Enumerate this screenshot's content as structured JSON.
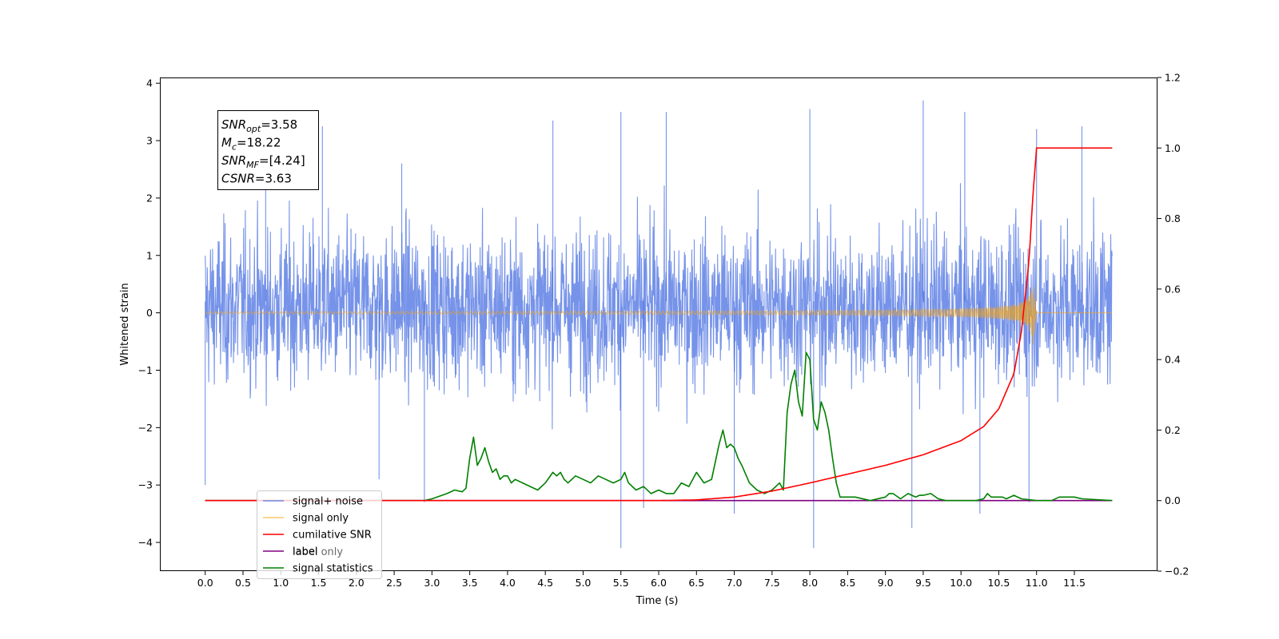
{
  "chart_data": {
    "type": "line",
    "xlabel": "Time (s)",
    "ylabel_left": "Whitened strain",
    "ylabel_right": "",
    "xlim": [
      -0.6,
      12.6
    ],
    "ylim_left": [
      -4.5,
      4.1
    ],
    "ylim_right": [
      -0.2,
      1.2
    ],
    "x_ticks": [
      "0.0",
      "0.5",
      "1.0",
      "1.5",
      "2.0",
      "2.5",
      "3.0",
      "3.5",
      "4.0",
      "4.5",
      "5.0",
      "5.5",
      "6.0",
      "6.5",
      "7.0",
      "7.5",
      "8.0",
      "8.5",
      "9.0",
      "9.5",
      "10.0",
      "10.5",
      "11.0",
      "11.5"
    ],
    "y_ticks_left": [
      "−4",
      "−3",
      "−2",
      "−1",
      "0",
      "1",
      "2",
      "3",
      "4"
    ],
    "y_ticks_right": [
      "−0.2",
      "0.0",
      "0.2",
      "0.4",
      "0.6",
      "0.8",
      "1.0",
      "1.2"
    ],
    "grid": false,
    "legend_position": "bottom-left",
    "stats_box": {
      "lines": [
        {
          "sym": "SNR",
          "sub": "opt",
          "val": "=3.58"
        },
        {
          "sym": "M",
          "sub": "c",
          "val": "=18.22"
        },
        {
          "sym": "SNR",
          "sub": "MF",
          "val": "=[4.24]"
        },
        {
          "sym": "CSNR",
          "sub": "",
          "val": "=3.63"
        }
      ]
    },
    "series": [
      {
        "name": "signal+ noise",
        "axis": "left",
        "color": "#4169e1",
        "description_range": [
          0.0,
          12.0
        ],
        "peak_values": [
          [
            0.8,
            2.55
          ],
          [
            1.55,
            3.25
          ],
          [
            2.6,
            2.6
          ],
          [
            4.6,
            3.35
          ],
          [
            5.5,
            3.5
          ],
          [
            6.1,
            3.5
          ],
          [
            8.0,
            3.55
          ],
          [
            9.5,
            3.7
          ],
          [
            10.05,
            3.5
          ],
          [
            11.0,
            3.2
          ],
          [
            11.6,
            3.25
          ]
        ],
        "trough_values": [
          [
            0.0,
            -3.0
          ],
          [
            2.3,
            -2.9
          ],
          [
            2.9,
            -3.3
          ],
          [
            5.5,
            -4.1
          ],
          [
            5.8,
            -3.4
          ],
          [
            7.0,
            -3.5
          ],
          [
            8.05,
            -4.1
          ],
          [
            9.35,
            -3.75
          ],
          [
            10.25,
            -3.5
          ],
          [
            10.9,
            -3.3
          ]
        ]
      },
      {
        "name": "signal only",
        "axis": "left",
        "color": "#ffa500",
        "chirp": {
          "start": 0.0,
          "end": 11.0,
          "merger": 10.95,
          "peak_amplitude": 0.62,
          "tail_end": 12.0
        }
      },
      {
        "name": "cumilative SNR",
        "axis": "right",
        "color": "#ff0000",
        "x": [
          0.0,
          6.0,
          6.5,
          7.0,
          7.5,
          8.0,
          8.5,
          9.0,
          9.5,
          10.0,
          10.3,
          10.5,
          10.7,
          10.8,
          10.9,
          10.95,
          11.0,
          12.0
        ],
        "y": [
          0.0,
          0.0,
          0.002,
          0.01,
          0.027,
          0.05,
          0.075,
          0.1,
          0.13,
          0.17,
          0.21,
          0.26,
          0.36,
          0.48,
          0.68,
          0.86,
          1.0,
          1.0
        ]
      },
      {
        "name": "label only",
        "axis": "right",
        "color": "#ffa500",
        "x": [],
        "y": []
      },
      {
        "name": "label",
        "axis": "right",
        "color": "#800080",
        "x": [
          0.0,
          12.0
        ],
        "y": [
          0.0,
          0.0
        ]
      },
      {
        "name": "signal statistics",
        "axis": "right",
        "color": "#008000",
        "x": [
          0.0,
          2.5,
          2.9,
          3.0,
          3.2,
          3.3,
          3.4,
          3.45,
          3.5,
          3.55,
          3.6,
          3.65,
          3.7,
          3.75,
          3.8,
          3.85,
          3.9,
          3.95,
          4.0,
          4.05,
          4.1,
          4.2,
          4.3,
          4.4,
          4.5,
          4.6,
          4.65,
          4.7,
          4.75,
          4.8,
          4.9,
          5.0,
          5.1,
          5.2,
          5.3,
          5.4,
          5.5,
          5.55,
          5.6,
          5.7,
          5.8,
          5.9,
          6.0,
          6.1,
          6.2,
          6.3,
          6.4,
          6.5,
          6.6,
          6.7,
          6.8,
          6.85,
          6.9,
          6.95,
          7.0,
          7.05,
          7.1,
          7.2,
          7.3,
          7.4,
          7.5,
          7.6,
          7.65,
          7.7,
          7.75,
          7.8,
          7.85,
          7.9,
          7.95,
          8.0,
          8.05,
          8.1,
          8.15,
          8.2,
          8.25,
          8.3,
          8.35,
          8.4,
          8.45,
          8.5,
          8.6,
          8.8,
          9.0,
          9.05,
          9.1,
          9.2,
          9.3,
          9.35,
          9.4,
          9.45,
          9.5,
          9.6,
          9.7,
          9.8,
          10.0,
          10.2,
          10.3,
          10.35,
          10.4,
          10.5,
          10.55,
          10.6,
          10.7,
          10.8,
          11.0,
          11.2,
          11.3,
          11.5,
          11.6,
          12.0
        ],
        "y": [
          0.0,
          0.0,
          0.0,
          0.005,
          0.02,
          0.03,
          0.025,
          0.035,
          0.12,
          0.18,
          0.1,
          0.12,
          0.15,
          0.11,
          0.08,
          0.09,
          0.06,
          0.07,
          0.07,
          0.05,
          0.06,
          0.05,
          0.04,
          0.03,
          0.05,
          0.08,
          0.07,
          0.08,
          0.06,
          0.05,
          0.07,
          0.06,
          0.05,
          0.07,
          0.06,
          0.05,
          0.06,
          0.08,
          0.05,
          0.03,
          0.04,
          0.02,
          0.03,
          0.02,
          0.02,
          0.05,
          0.04,
          0.08,
          0.05,
          0.06,
          0.16,
          0.2,
          0.15,
          0.16,
          0.15,
          0.12,
          0.1,
          0.05,
          0.03,
          0.02,
          0.03,
          0.05,
          0.03,
          0.25,
          0.33,
          0.37,
          0.28,
          0.24,
          0.42,
          0.4,
          0.23,
          0.2,
          0.28,
          0.25,
          0.2,
          0.12,
          0.05,
          0.01,
          0.01,
          0.01,
          0.01,
          0.0,
          0.01,
          0.02,
          0.02,
          0.005,
          0.02,
          0.015,
          0.01,
          0.015,
          0.015,
          0.02,
          0.005,
          0.0,
          0.0,
          0.0,
          0.005,
          0.02,
          0.01,
          0.01,
          0.01,
          0.005,
          0.015,
          0.005,
          0.0,
          0.0,
          0.01,
          0.01,
          0.005,
          0.0
        ]
      }
    ]
  }
}
